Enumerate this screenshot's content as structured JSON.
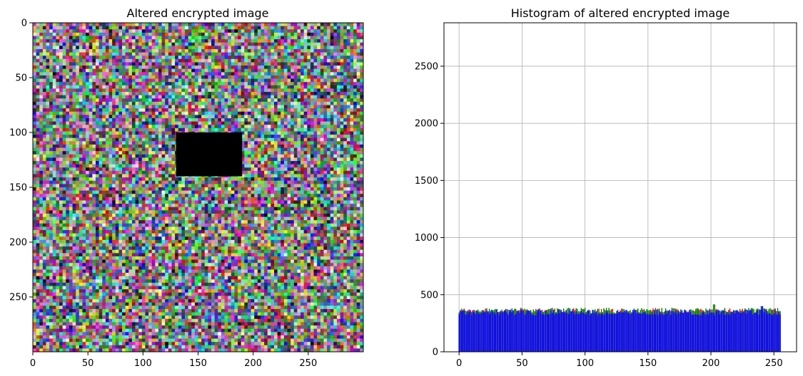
{
  "chart_data": [
    {
      "type": "image",
      "title": "Altered encrypted image",
      "image_size": [
        300,
        300
      ],
      "xlim": [
        0,
        300
      ],
      "ylim": [
        300,
        0
      ],
      "xticks": [
        0,
        50,
        100,
        150,
        200,
        250
      ],
      "yticks": [
        0,
        50,
        100,
        150,
        200,
        250
      ],
      "blackout_region": {
        "x": [
          130,
          190
        ],
        "y": [
          100,
          140
        ],
        "color": "#000000"
      },
      "content": "random colour noise"
    },
    {
      "type": "bar",
      "title": "Histogram of altered encrypted image",
      "grid": true,
      "xlim": [
        -12,
        268
      ],
      "ylim": [
        0,
        2880
      ],
      "xticks": [
        0,
        50,
        100,
        150,
        200,
        250
      ],
      "yticks": [
        0,
        500,
        1000,
        1500,
        2000,
        2500
      ],
      "bins": "0–255",
      "series": [
        {
          "color": "#ff0000",
          "approx_mean": 355
        },
        {
          "color": "#008000",
          "approx_mean": 360
        },
        {
          "color": "#0000ff",
          "approx_mean": 345
        }
      ]
    }
  ]
}
